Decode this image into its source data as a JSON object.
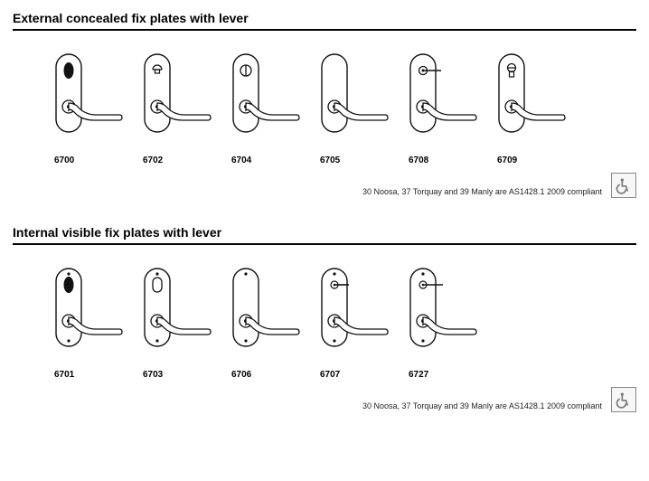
{
  "colors": {
    "text": "#000000",
    "rule": "#000000",
    "stroke": "#111111",
    "fill_dark": "#111111",
    "background": "#ffffff",
    "icon_border": "#888888",
    "icon_bg": "#f7f7f7",
    "icon_fg": "#7a7a7a"
  },
  "plate_svg": {
    "width": 80,
    "height": 110
  },
  "sections": [
    {
      "title": "External concealed fix plates with lever",
      "plates": [
        {
          "code": "6700",
          "feature": "euro_oval_black"
        },
        {
          "code": "6702",
          "feature": "small_turn_knob"
        },
        {
          "code": "6704",
          "feature": "indicator_circle"
        },
        {
          "code": "6705",
          "feature": "none"
        },
        {
          "code": "6708",
          "feature": "turn_lever"
        },
        {
          "code": "6709",
          "feature": "cylinder_key"
        }
      ],
      "compliance": "30 Noosa, 37 Torquay and 39 Manly are AS1428.1 2009 compliant"
    },
    {
      "title": "Internal visible fix plates with lever",
      "plates": [
        {
          "code": "6701",
          "feature": "euro_oval_black",
          "fix_screws": true
        },
        {
          "code": "6703",
          "feature": "slot_oval",
          "fix_screws": true
        },
        {
          "code": "6706",
          "feature": "none",
          "fix_screws": true
        },
        {
          "code": "6707",
          "feature": "turn_lever_short",
          "fix_screws": true
        },
        {
          "code": "6727",
          "feature": "turn_lever_long",
          "fix_screws": true
        }
      ],
      "compliance": "30 Noosa, 37 Torquay and 39 Manly are AS1428.1 2009 compliant"
    }
  ]
}
